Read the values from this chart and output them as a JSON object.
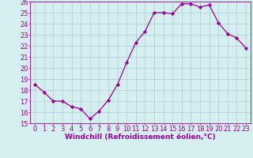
{
  "x": [
    0,
    1,
    2,
    3,
    4,
    5,
    6,
    7,
    8,
    9,
    10,
    11,
    12,
    13,
    14,
    15,
    16,
    17,
    18,
    19,
    20,
    21,
    22,
    23
  ],
  "y": [
    18.5,
    17.8,
    17.0,
    17.0,
    16.5,
    16.3,
    15.4,
    16.1,
    17.1,
    18.5,
    20.5,
    22.3,
    23.3,
    25.0,
    25.0,
    24.9,
    25.8,
    25.8,
    25.5,
    25.7,
    24.1,
    23.1,
    22.7,
    21.8
  ],
  "xlabel": "Windchill (Refroidissement éolien,°C)",
  "xlim": [
    -0.5,
    23.5
  ],
  "ylim": [
    15,
    26
  ],
  "yticks": [
    15,
    16,
    17,
    18,
    19,
    20,
    21,
    22,
    23,
    24,
    25,
    26
  ],
  "xticks": [
    0,
    1,
    2,
    3,
    4,
    5,
    6,
    7,
    8,
    9,
    10,
    11,
    12,
    13,
    14,
    15,
    16,
    17,
    18,
    19,
    20,
    21,
    22,
    23
  ],
  "line_color": "#990099",
  "marker": "D",
  "marker_size": 2.2,
  "bg_color": "#d5eef0",
  "grid_color": "#b8d8dc",
  "label_fontsize": 6.5,
  "tick_fontsize": 6
}
